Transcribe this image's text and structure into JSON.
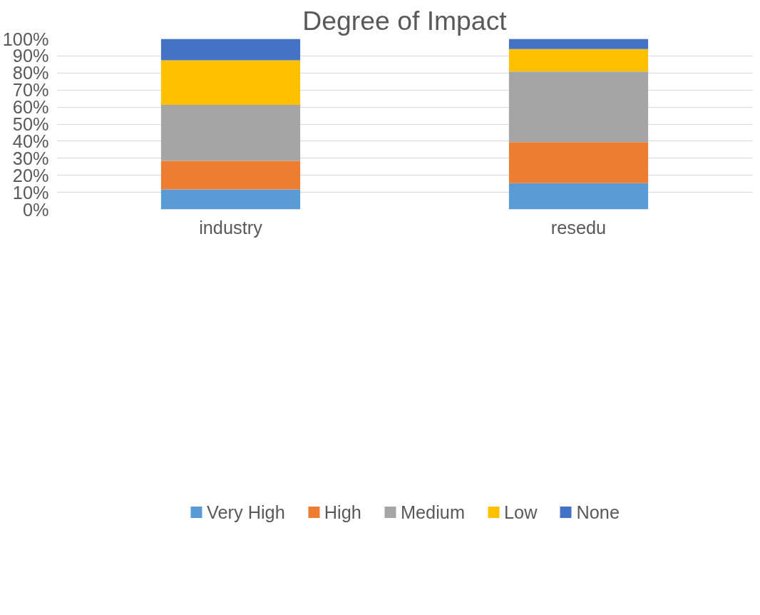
{
  "chart_data": {
    "type": "bar",
    "title": "Degree of Impact",
    "categories": [
      "industry",
      "resedu"
    ],
    "stacked": true,
    "series": [
      {
        "name": "Very High",
        "color": "#5b9bd5",
        "values": [
          11.7,
          15.4
        ]
      },
      {
        "name": "High",
        "color": "#ed7d31",
        "values": [
          16.8,
          24.0
        ]
      },
      {
        "name": "Medium",
        "color": "#a5a5a5",
        "values": [
          32.8,
          41.5
        ]
      },
      {
        "name": "Low",
        "color": "#ffc000",
        "values": [
          26.2,
          13.1
        ]
      },
      {
        "name": "None",
        "color": "#4472c4",
        "values": [
          12.5,
          6.0
        ]
      }
    ],
    "ylim": [
      0,
      100
    ],
    "yticks": [
      {
        "value": 0,
        "label": "0%"
      },
      {
        "value": 10,
        "label": "10%"
      },
      {
        "value": 20,
        "label": "20%"
      },
      {
        "value": 30,
        "label": "30%"
      },
      {
        "value": 40,
        "label": "40%"
      },
      {
        "value": 50,
        "label": "50%"
      },
      {
        "value": 60,
        "label": "60%"
      },
      {
        "value": 70,
        "label": "70%"
      },
      {
        "value": 80,
        "label": "80%"
      },
      {
        "value": 90,
        "label": "90%"
      },
      {
        "value": 100,
        "label": "100%"
      }
    ],
    "grid": "y",
    "legend": "bottom"
  }
}
